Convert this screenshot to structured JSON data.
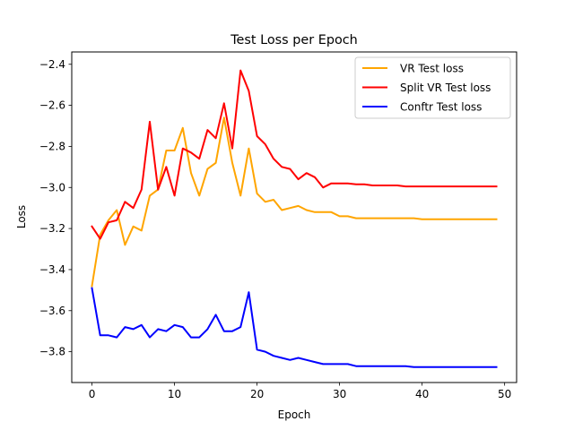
{
  "chart_data": {
    "type": "line",
    "title": "Test Loss per Epoch",
    "xlabel": "Epoch",
    "ylabel": "Loss",
    "xlim": [
      -2.45,
      51.45
    ],
    "ylim": [
      -3.95,
      -2.34
    ],
    "xticks": [
      0,
      10,
      20,
      30,
      40,
      50
    ],
    "yticks": [
      -3.8,
      -3.6,
      -3.4,
      -3.2,
      -3.0,
      -2.8,
      -2.6,
      -2.4
    ],
    "xtick_labels": [
      "0",
      "10",
      "20",
      "30",
      "40",
      "50"
    ],
    "ytick_labels": [
      "−3.8",
      "−3.6",
      "−3.4",
      "−3.2",
      "−3.0",
      "−2.8",
      "−2.6",
      "−2.4"
    ],
    "grid": false,
    "legend_position": "top-right",
    "x": [
      0,
      1,
      2,
      3,
      4,
      5,
      6,
      7,
      8,
      9,
      10,
      11,
      12,
      13,
      14,
      15,
      16,
      17,
      18,
      19,
      20,
      21,
      22,
      23,
      24,
      25,
      26,
      27,
      28,
      29,
      30,
      31,
      32,
      33,
      34,
      35,
      36,
      37,
      38,
      39,
      40,
      41,
      42,
      43,
      44,
      45,
      46,
      47,
      48,
      49
    ],
    "series": [
      {
        "name": "VR Test loss",
        "color": "#ffa500",
        "values": [
          -3.48,
          -3.23,
          -3.16,
          -3.11,
          -3.28,
          -3.19,
          -3.21,
          -3.04,
          -3.01,
          -2.82,
          -2.82,
          -2.71,
          -2.93,
          -3.04,
          -2.91,
          -2.88,
          -2.66,
          -2.88,
          -3.04,
          -2.81,
          -3.03,
          -3.07,
          -3.06,
          -3.11,
          -3.1,
          -3.09,
          -3.11,
          -3.12,
          -3.12,
          -3.12,
          -3.14,
          -3.14,
          -3.15,
          -3.15,
          -3.15,
          -3.15,
          -3.15,
          -3.15,
          -3.15,
          -3.15,
          -3.155,
          -3.155,
          -3.155,
          -3.155,
          -3.155,
          -3.155,
          -3.155,
          -3.155,
          -3.155,
          -3.155
        ]
      },
      {
        "name": "Split VR Test loss",
        "color": "#ff0000",
        "values": [
          -3.19,
          -3.25,
          -3.17,
          -3.16,
          -3.07,
          -3.1,
          -3.01,
          -2.68,
          -3.01,
          -2.9,
          -3.04,
          -2.81,
          -2.83,
          -2.86,
          -2.72,
          -2.76,
          -2.59,
          -2.81,
          -2.43,
          -2.53,
          -2.75,
          -2.79,
          -2.86,
          -2.9,
          -2.91,
          -2.96,
          -2.93,
          -2.95,
          -3.0,
          -2.98,
          -2.98,
          -2.98,
          -2.985,
          -2.985,
          -2.99,
          -2.99,
          -2.99,
          -2.99,
          -2.995,
          -2.995,
          -2.995,
          -2.995,
          -2.995,
          -2.995,
          -2.995,
          -2.995,
          -2.995,
          -2.995,
          -2.995,
          -2.995
        ]
      },
      {
        "name": "Conftr Test loss",
        "color": "#0000ff",
        "values": [
          -3.49,
          -3.72,
          -3.72,
          -3.73,
          -3.68,
          -3.69,
          -3.67,
          -3.73,
          -3.69,
          -3.7,
          -3.67,
          -3.68,
          -3.73,
          -3.73,
          -3.69,
          -3.62,
          -3.7,
          -3.7,
          -3.68,
          -3.51,
          -3.79,
          -3.8,
          -3.82,
          -3.83,
          -3.84,
          -3.83,
          -3.84,
          -3.85,
          -3.86,
          -3.86,
          -3.86,
          -3.86,
          -3.87,
          -3.87,
          -3.87,
          -3.87,
          -3.87,
          -3.87,
          -3.87,
          -3.875,
          -3.875,
          -3.875,
          -3.875,
          -3.875,
          -3.875,
          -3.875,
          -3.875,
          -3.875,
          -3.875,
          -3.875
        ]
      }
    ]
  }
}
